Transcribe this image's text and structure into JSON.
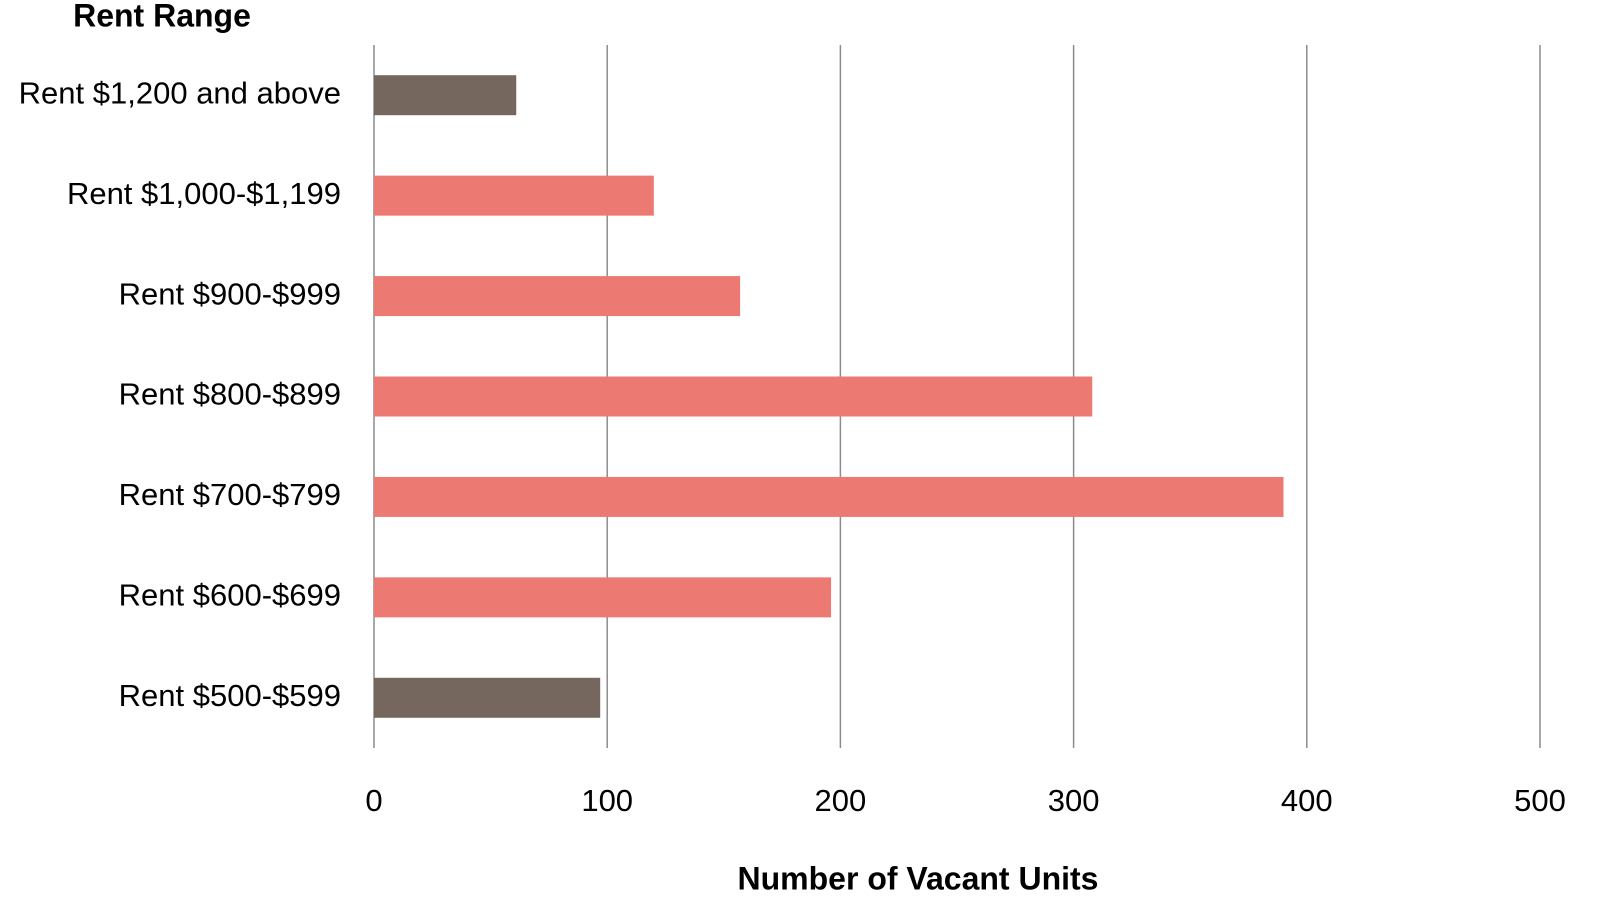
{
  "chart_data": {
    "type": "bar",
    "orientation": "horizontal",
    "y_label": "Rent Range",
    "x_label": "Number of Vacant Units",
    "categories": [
      "Rent $1,200 and above",
      "Rent $1,000-$1,199",
      "Rent $900-$999",
      "Rent $800-$899",
      "Rent $700-$799",
      "Rent $600-$699",
      "Rent $500-$599"
    ],
    "values": [
      61,
      120,
      157,
      308,
      390,
      196,
      97
    ],
    "colors": [
      "#75675d",
      "#ec7a73",
      "#ec7a73",
      "#ec7a73",
      "#ec7a73",
      "#ec7a73",
      "#75675d"
    ],
    "xlim": [
      0,
      500
    ],
    "xticks": [
      0,
      100,
      200,
      300,
      400,
      500
    ],
    "grid": true
  }
}
